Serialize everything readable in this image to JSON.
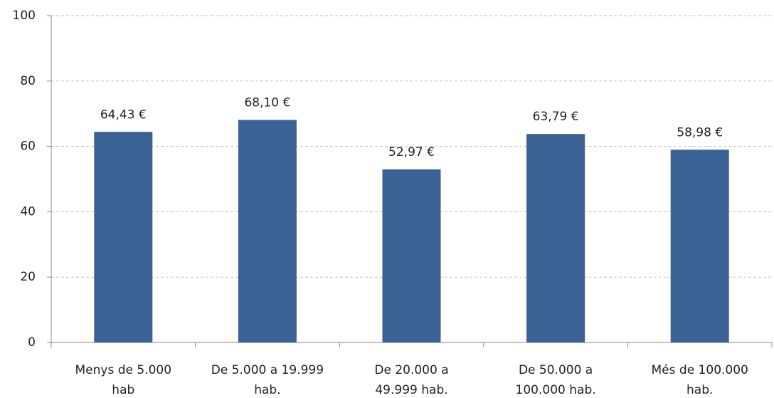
{
  "chart_data": {
    "type": "bar",
    "categories": [
      [
        "Menys de 5.000",
        "hab"
      ],
      [
        "De 5.000 a 19.999",
        "hab."
      ],
      [
        "De 20.000 a",
        "49.999 hab."
      ],
      [
        "De 50.000 a",
        "100.000 hab."
      ],
      [
        "Més de 100.000",
        "hab."
      ]
    ],
    "values": [
      64.43,
      68.1,
      52.97,
      63.79,
      58.98
    ],
    "value_labels": [
      "64,43 €",
      "68,10 €",
      "52,97 €",
      "63,79 €",
      "58,98 €"
    ],
    "color": "#3a6194",
    "ylim": [
      0,
      100
    ],
    "yticks": [
      0,
      20,
      40,
      60,
      80,
      100
    ],
    "grid": true
  }
}
